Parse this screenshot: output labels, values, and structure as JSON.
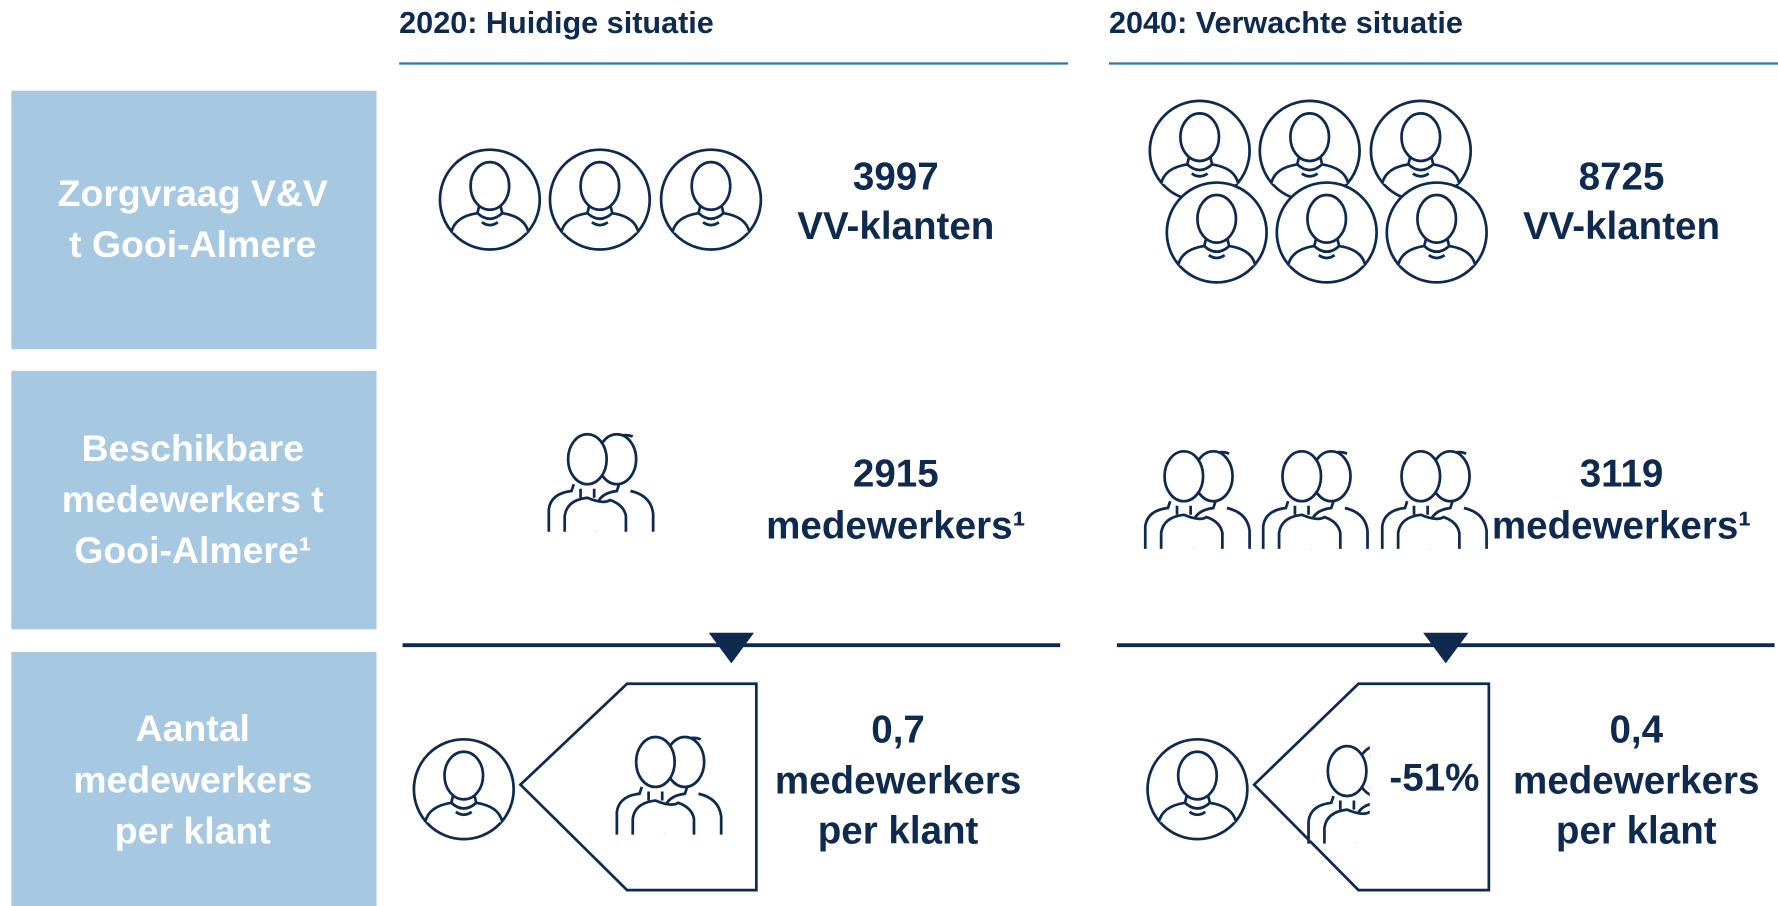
{
  "headers": [
    "2020: Huidige situatie",
    "2040: Verwachte situatie"
  ],
  "rows": [
    {
      "label": [
        "Zorgvraag V&V",
        "t Gooi-Almere"
      ],
      "cells": [
        [
          "3997",
          "VV-klanten"
        ],
        [
          "8725",
          "VV-klanten"
        ]
      ]
    },
    {
      "label": [
        "Beschikbare",
        "medewerkers t",
        "Gooi-Almere¹"
      ],
      "cells": [
        [
          "2915",
          "medewerkers¹"
        ],
        [
          "3119",
          "medewerkers¹"
        ]
      ]
    },
    {
      "label": [
        "Aantal",
        "medewerkers",
        "per klant"
      ],
      "cells": [
        [
          "0,7",
          "medewerkers",
          "per klant"
        ],
        [
          "0,4",
          "medewerkers",
          "per klant"
        ]
      ]
    }
  ],
  "change": "-51%"
}
